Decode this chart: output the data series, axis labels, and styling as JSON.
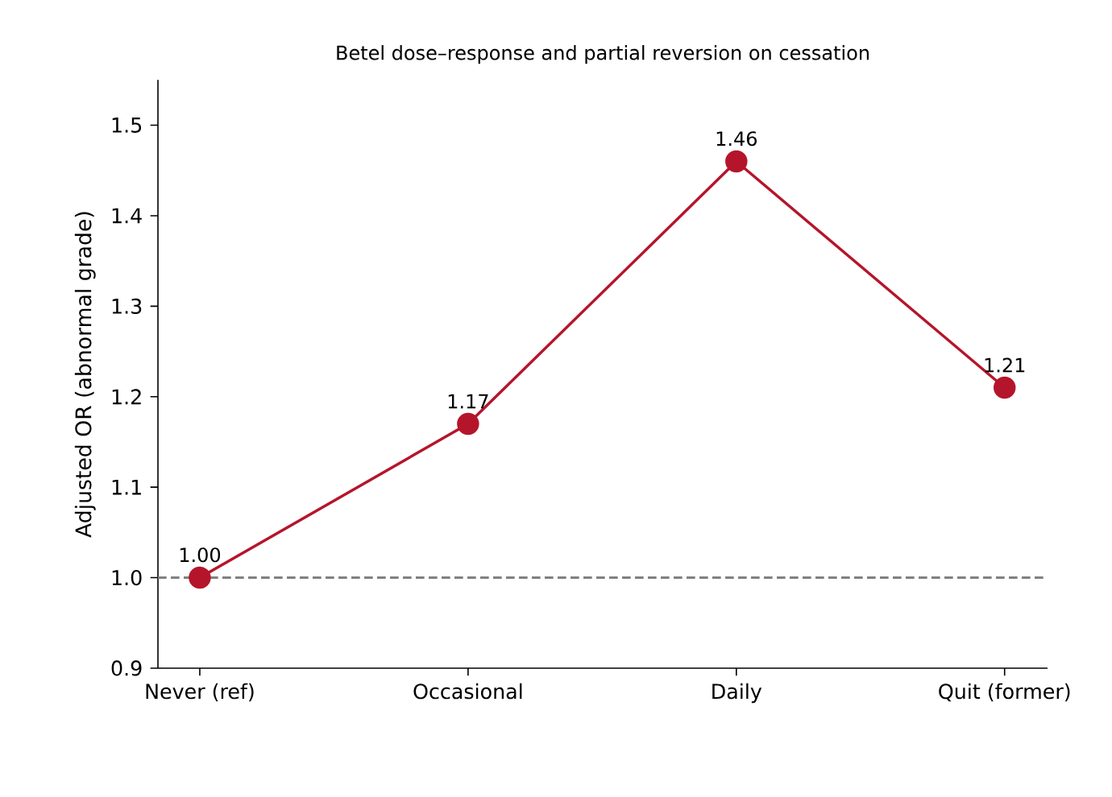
{
  "chart_data": {
    "type": "line",
    "title": "Betel dose–response and partial reversion on cessation",
    "ylabel": "Adjusted OR (abnormal grade)",
    "categories": [
      "Never (ref)",
      "Occasional",
      "Daily",
      "Quit (former)"
    ],
    "series": [
      {
        "color": "#b5152b",
        "values": [
          1.0,
          1.17,
          1.46,
          1.21
        ],
        "value_labels": [
          "1.00",
          "1.17",
          "1.46",
          "1.21"
        ]
      }
    ],
    "ylim": [
      0.9,
      1.55
    ],
    "yticks": [
      {
        "value": 0.9,
        "label": "0.9"
      },
      {
        "value": 1.0,
        "label": "1.0"
      },
      {
        "value": 1.1,
        "label": "1.1"
      },
      {
        "value": 1.2,
        "label": "1.2"
      },
      {
        "value": 1.3,
        "label": "1.3"
      },
      {
        "value": 1.4,
        "label": "1.4"
      },
      {
        "value": 1.5,
        "label": "1.5"
      }
    ],
    "marker": "circle",
    "line_style": "solid",
    "ref_lines": [
      {
        "axis": "y",
        "value": 1.0,
        "color": "#808080",
        "line_style": "dashed"
      }
    ]
  }
}
